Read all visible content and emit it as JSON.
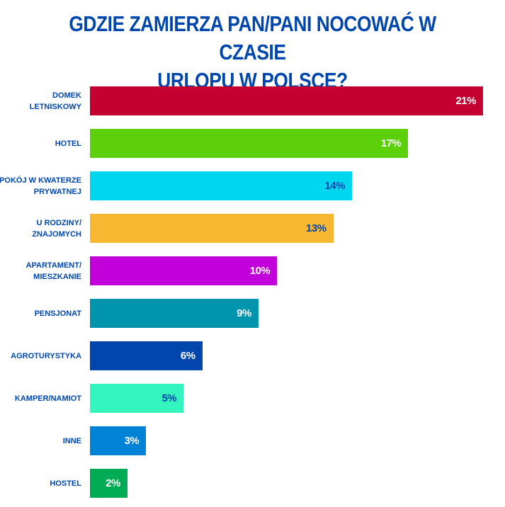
{
  "chart_data": {
    "type": "bar",
    "orientation": "horizontal",
    "title": "GDZIE ZAMIERZA PAN/PANI NOCOWAĆ W CZASIE\nURLOPU W POLSCE?",
    "categories": [
      "DOMEK\nLETNISKOWY",
      "HOTEL",
      "POKÓJ W KWATERZE\nPRYWATNEJ",
      "U RODZINY/\nZNAJOMYCH",
      "APARTAMENT/\nMIESZKANIE",
      "PENSJONAT",
      "AGROTURYSTYKA",
      "KAMPER/NAMIOT",
      "INNE",
      "HOSTEL"
    ],
    "values": [
      21,
      17,
      14,
      13,
      10,
      9,
      6,
      5,
      3,
      2
    ],
    "value_labels": [
      "21%",
      "17%",
      "14%",
      "13%",
      "10%",
      "9%",
      "6%",
      "5%",
      "3%",
      "2%"
    ],
    "colors": [
      "#c3002f",
      "#5cd10b",
      "#00d7ef",
      "#f7b731",
      "#c200d9",
      "#0094ad",
      "#0046ad",
      "#33f5bd",
      "#0082d6",
      "#00ab55"
    ],
    "label_colors": [
      "#ffffff",
      "#ffffff",
      "#0046ad",
      "#0046ad",
      "#ffffff",
      "#ffffff",
      "#ffffff",
      "#0046ad",
      "#ffffff",
      "#ffffff"
    ],
    "xlim": [
      0,
      21
    ],
    "xlabel": "",
    "ylabel": "",
    "grid": false
  }
}
